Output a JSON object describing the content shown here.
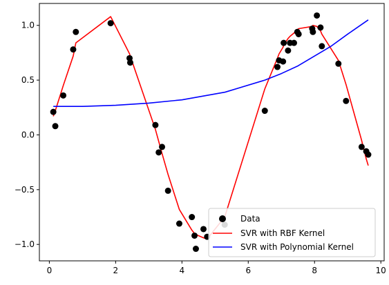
{
  "chart_data": {
    "type": "scatter",
    "title": "",
    "xlabel": "",
    "ylabel": "",
    "xlim": [
      -0.3,
      10.1
    ],
    "ylim": [
      -1.15,
      1.2
    ],
    "xticks": [
      0,
      2,
      4,
      6,
      8,
      10
    ],
    "yticks": [
      -1.0,
      -0.5,
      0.0,
      0.5,
      1.0
    ],
    "grid": false,
    "legend_position": "lower-right",
    "series": [
      {
        "name": "Data",
        "kind": "scatter",
        "color": "#000000",
        "x": [
          0.12,
          0.18,
          0.42,
          0.72,
          0.8,
          1.85,
          2.42,
          2.44,
          3.2,
          3.3,
          3.4,
          3.58,
          3.92,
          4.3,
          4.38,
          4.42,
          4.65,
          4.76,
          5.29,
          6.5,
          6.88,
          6.93,
          7.05,
          7.07,
          7.2,
          7.26,
          7.38,
          7.48,
          7.52,
          7.93,
          7.95,
          8.07,
          8.18,
          8.22,
          8.72,
          8.95,
          9.42,
          9.56,
          9.62
        ],
        "y": [
          0.21,
          0.08,
          0.36,
          0.78,
          0.94,
          1.02,
          0.7,
          0.66,
          0.09,
          -0.16,
          -0.11,
          -0.51,
          -0.81,
          -0.75,
          -0.92,
          -1.04,
          -0.86,
          -0.93,
          -0.82,
          0.22,
          0.62,
          0.68,
          0.67,
          0.84,
          0.77,
          0.84,
          0.84,
          0.94,
          0.92,
          0.97,
          0.94,
          1.09,
          0.98,
          0.81,
          0.65,
          0.31,
          -0.11,
          -0.15,
          -0.18
        ]
      },
      {
        "name": "SVR with RBF Kernel",
        "kind": "line",
        "color": "#ff0000",
        "x": [
          0.12,
          0.18,
          0.42,
          0.72,
          0.8,
          1.85,
          2.42,
          2.44,
          3.2,
          3.3,
          3.4,
          3.58,
          3.92,
          4.3,
          4.38,
          4.42,
          4.65,
          4.76,
          5.29,
          6.5,
          6.88,
          6.93,
          7.05,
          7.07,
          7.2,
          7.26,
          7.38,
          7.48,
          7.52,
          7.93,
          7.95,
          8.07,
          8.18,
          8.22,
          8.72,
          8.95,
          9.42,
          9.56,
          9.62
        ],
        "y": [
          0.17,
          0.22,
          0.45,
          0.72,
          0.84,
          1.08,
          0.74,
          0.72,
          0.05,
          -0.06,
          -0.17,
          -0.36,
          -0.68,
          -0.87,
          -0.9,
          -0.91,
          -0.94,
          -0.95,
          -0.75,
          0.42,
          0.7,
          0.74,
          0.8,
          0.82,
          0.88,
          0.9,
          0.93,
          0.96,
          0.97,
          0.99,
          1.0,
          0.99,
          0.95,
          0.92,
          0.68,
          0.46,
          -0.05,
          -0.22,
          -0.28
        ]
      },
      {
        "name": "SVR with Polynomial Kernel",
        "kind": "line",
        "color": "#0000ff",
        "x": [
          0.12,
          1.0,
          2.0,
          3.0,
          4.0,
          5.3,
          6.5,
          7.0,
          7.5,
          8.0,
          8.5,
          9.0,
          9.62
        ],
        "y": [
          0.26,
          0.26,
          0.27,
          0.29,
          0.32,
          0.39,
          0.5,
          0.56,
          0.63,
          0.72,
          0.81,
          0.92,
          1.05
        ]
      }
    ]
  }
}
